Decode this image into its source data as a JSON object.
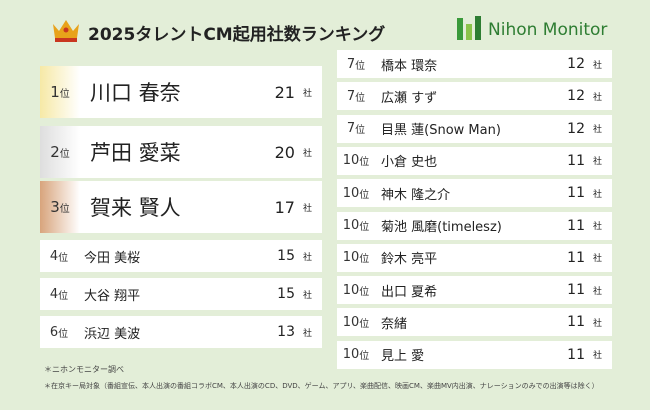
{
  "header": {
    "title": "2025タレントCM起用社数ランキング",
    "logo": "Nihon Monitor"
  },
  "left": [
    {
      "rank": "1",
      "rank_unit": "位",
      "name": "川口 春奈",
      "count": "21",
      "count_unit": "社"
    },
    {
      "rank": "2",
      "rank_unit": "位",
      "name": "芦田 愛菜",
      "count": "20",
      "count_unit": "社"
    },
    {
      "rank": "3",
      "rank_unit": "位",
      "name": "賀来 賢人",
      "count": "17",
      "count_unit": "社"
    },
    {
      "rank": "4",
      "rank_unit": "位",
      "name": "今田 美桜",
      "count": "15",
      "count_unit": "社"
    },
    {
      "rank": "4",
      "rank_unit": "位",
      "name": "大谷 翔平",
      "count": "15",
      "count_unit": "社"
    },
    {
      "rank": "6",
      "rank_unit": "位",
      "name": "浜辺 美波",
      "count": "13",
      "count_unit": "社"
    }
  ],
  "right": [
    {
      "rank": "7",
      "rank_unit": "位",
      "name": "橋本 環奈",
      "count": "12",
      "count_unit": "社"
    },
    {
      "rank": "7",
      "rank_unit": "位",
      "name": "広瀬 すず",
      "count": "12",
      "count_unit": "社"
    },
    {
      "rank": "7",
      "rank_unit": "位",
      "name": "目黒 蓮(Snow Man)",
      "count": "12",
      "count_unit": "社"
    },
    {
      "rank": "10",
      "rank_unit": "位",
      "name": "小倉 史也",
      "count": "11",
      "count_unit": "社"
    },
    {
      "rank": "10",
      "rank_unit": "位",
      "name": "神木 隆之介",
      "count": "11",
      "count_unit": "社"
    },
    {
      "rank": "10",
      "rank_unit": "位",
      "name": "菊池 風磨(timelesz)",
      "count": "11",
      "count_unit": "社"
    },
    {
      "rank": "10",
      "rank_unit": "位",
      "name": "鈴木 亮平",
      "count": "11",
      "count_unit": "社"
    },
    {
      "rank": "10",
      "rank_unit": "位",
      "name": "出口 夏希",
      "count": "11",
      "count_unit": "社"
    },
    {
      "rank": "10",
      "rank_unit": "位",
      "name": "奈緒",
      "count": "11",
      "count_unit": "社"
    },
    {
      "rank": "10",
      "rank_unit": "位",
      "name": "見上 愛",
      "count": "11",
      "count_unit": "社"
    }
  ],
  "notes": [
    "＊ニホンモニター調べ",
    "＊在京キー局対象（番組宣伝、本人出演の番組コラボCM、本人出演のCD、DVD、ゲーム、アプリ、楽曲配信、映画CM、楽曲MV内出演、ナレーションのみでの出演等は除く）"
  ]
}
